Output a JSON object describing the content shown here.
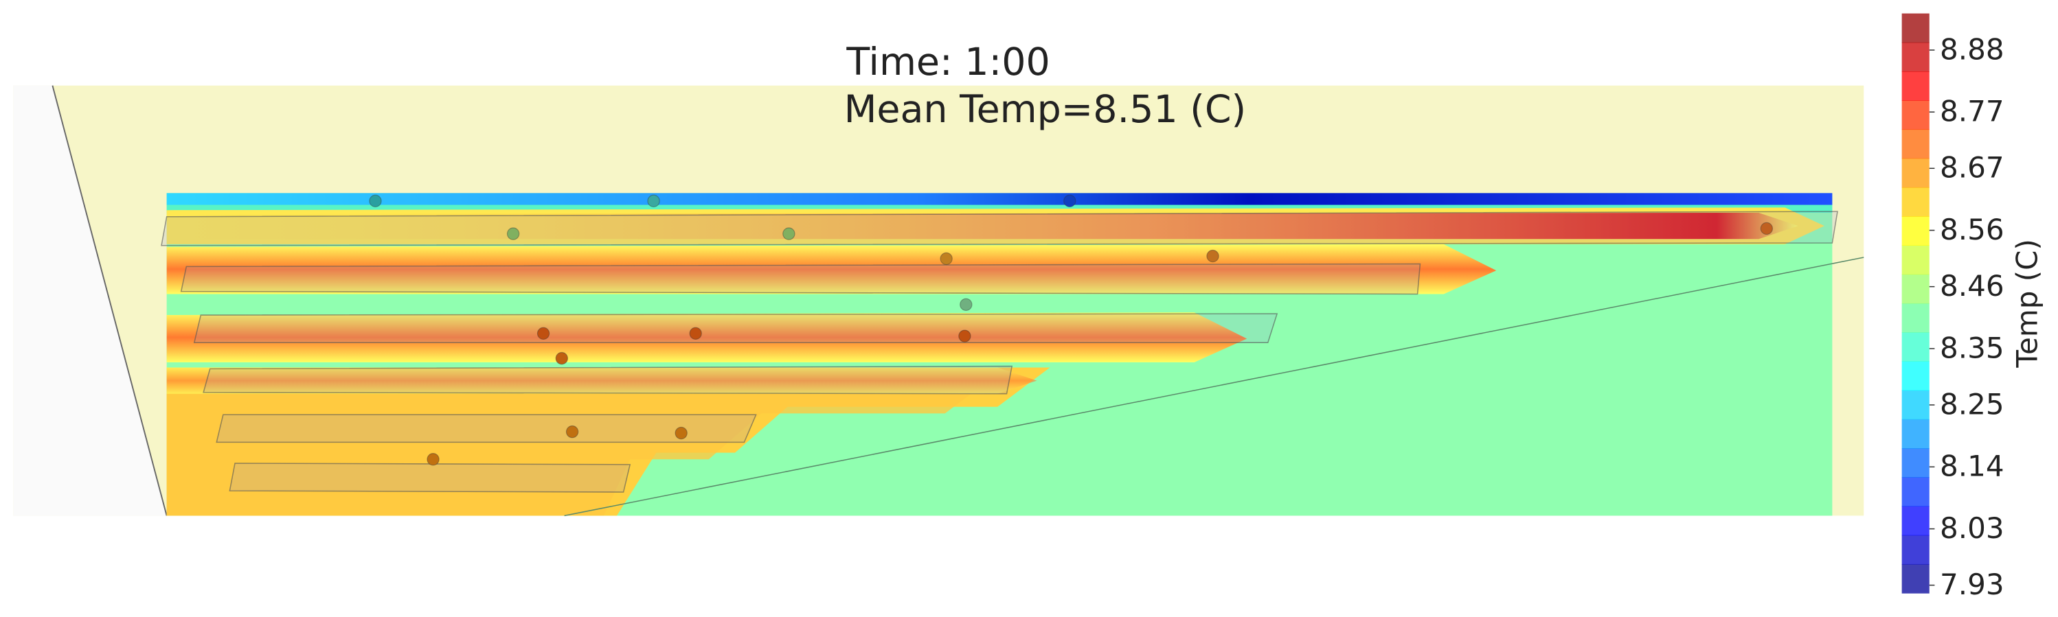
{
  "chart_data": {
    "type": "contour",
    "title": "Time: 1:00",
    "subtitle": "Mean Temp=8.51 (C)",
    "colorbar": {
      "label": "Temp (C)",
      "ylim": [
        7.916,
        8.945
      ],
      "yticks": [
        7.93,
        8.03,
        8.14,
        8.25,
        8.35,
        8.46,
        8.56,
        8.67,
        8.77,
        8.88
      ]
    }
  }
}
